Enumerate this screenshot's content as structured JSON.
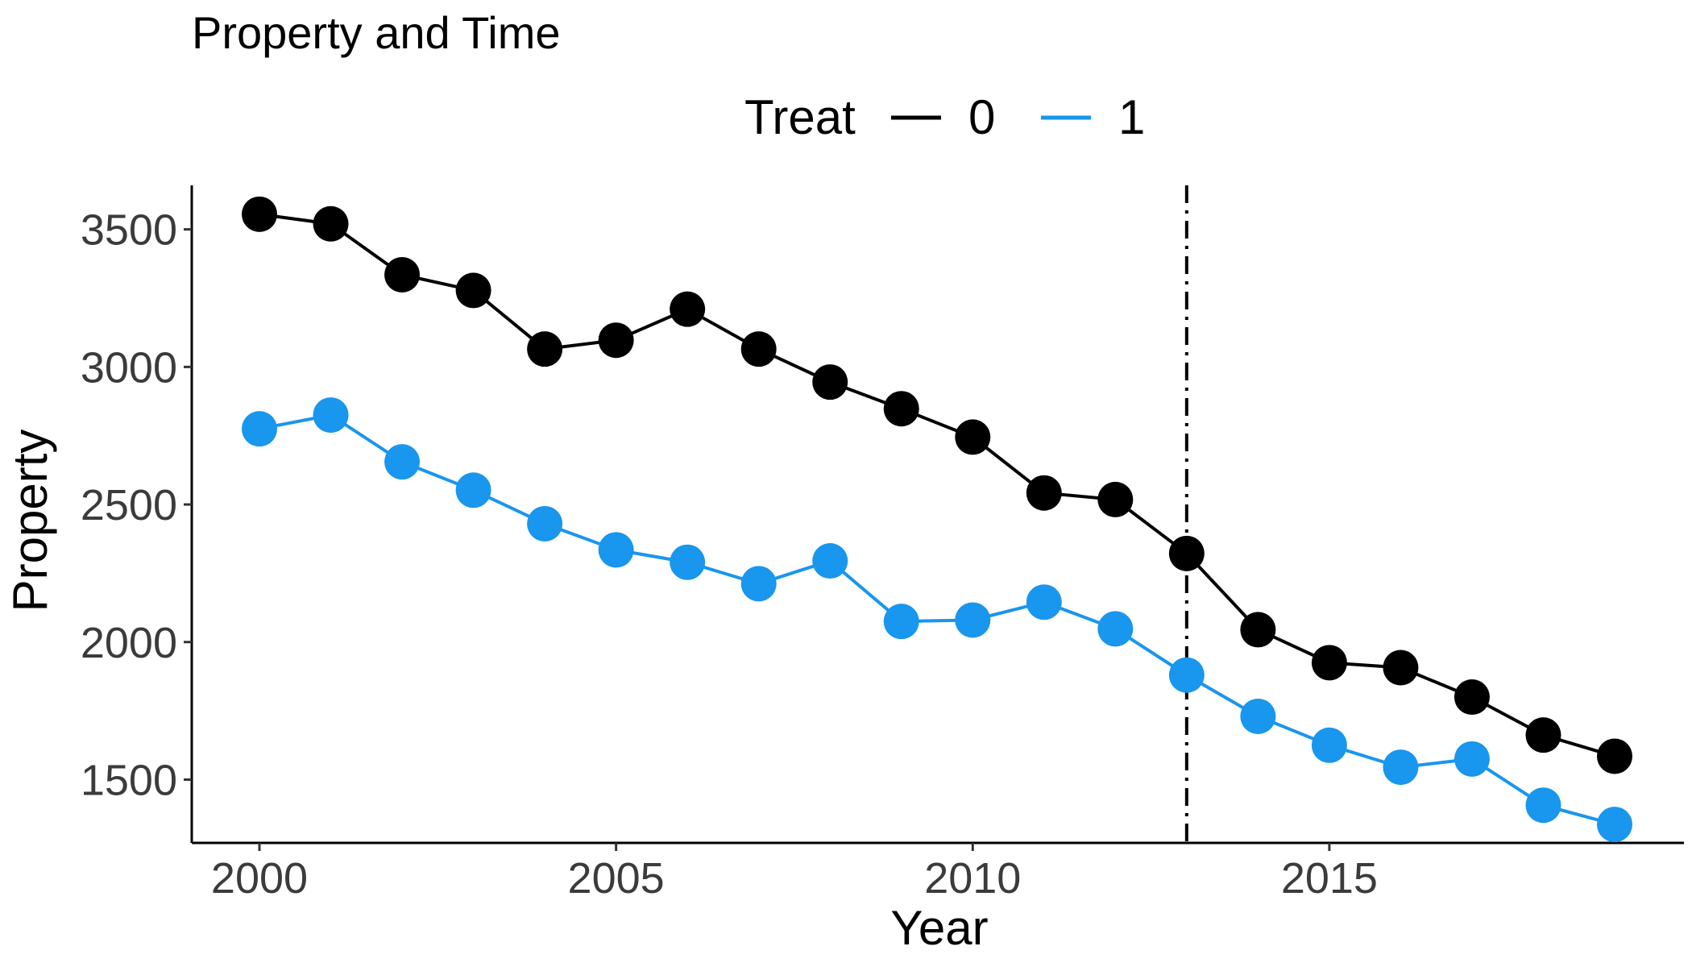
{
  "chart_data": {
    "type": "line",
    "title": "Property and Time",
    "xlabel": "Year",
    "ylabel": "Property",
    "xlim": [
      1999.5,
      2019.5
    ],
    "ylim": [
      1270,
      3660
    ],
    "xticks": [
      2000,
      2005,
      2010,
      2015
    ],
    "yticks": [
      1500,
      2000,
      2500,
      3000,
      3500
    ],
    "grid": false,
    "legend": {
      "title": "Treat",
      "position": "top",
      "entries": [
        "0",
        "1"
      ]
    },
    "reference_line": {
      "x": 2013,
      "style": "dot-dash"
    },
    "x": [
      2000,
      2001,
      2002,
      2003,
      2004,
      2005,
      2006,
      2007,
      2008,
      2009,
      2010,
      2011,
      2012,
      2013,
      2014,
      2015,
      2016,
      2017,
      2018,
      2019
    ],
    "series": [
      {
        "name": "0",
        "color": "#000000",
        "values": [
          3555,
          3520,
          3335,
          3278,
          3065,
          3097,
          3210,
          3065,
          2945,
          2848,
          2745,
          2542,
          2518,
          2322,
          2045,
          1925,
          1907,
          1800,
          1662,
          1585
        ]
      },
      {
        "name": "1",
        "color": "#1996ee",
        "values": [
          2775,
          2825,
          2655,
          2552,
          2430,
          2335,
          2290,
          2212,
          2295,
          2075,
          2080,
          2145,
          2048,
          1880,
          1730,
          1625,
          1545,
          1575,
          1407,
          1337
        ]
      }
    ]
  }
}
